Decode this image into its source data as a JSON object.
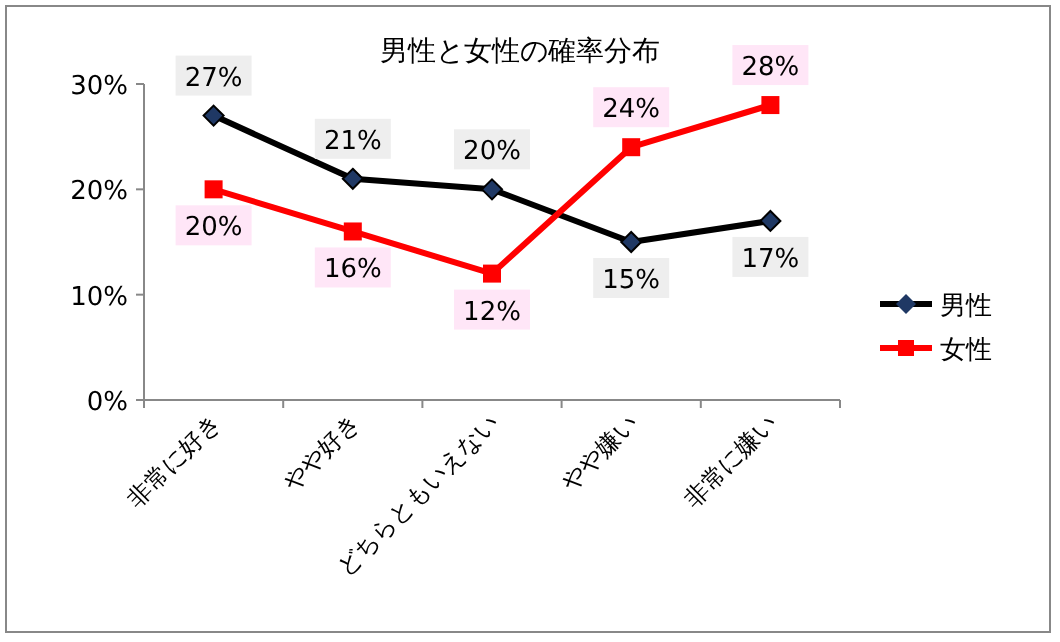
{
  "chart_data": {
    "type": "line",
    "title": "男性と女性の確率分布",
    "categories": [
      "非常に好き",
      "やや好き",
      "どちらともいえない",
      "やや嫌い",
      "非常に嫌い"
    ],
    "series": [
      {
        "name": "男性",
        "color": "#000000",
        "marker": "diamond",
        "values": [
          27,
          21,
          20,
          15,
          17
        ],
        "value_labels": [
          "27%",
          "21%",
          "20%",
          "15%",
          "17%"
        ]
      },
      {
        "name": "女性",
        "color": "#ff0000",
        "marker": "square",
        "values": [
          20,
          16,
          12,
          24,
          28
        ],
        "value_labels": [
          "20%",
          "16%",
          "12%",
          "24%",
          "28%"
        ]
      }
    ],
    "ylim": [
      0,
      30
    ],
    "yticks": [
      {
        "value": 0,
        "label": "0%"
      },
      {
        "value": 10,
        "label": "10%"
      },
      {
        "value": 20,
        "label": "20%"
      },
      {
        "value": 30,
        "label": "30%"
      }
    ],
    "grid": false,
    "legend": "right"
  }
}
